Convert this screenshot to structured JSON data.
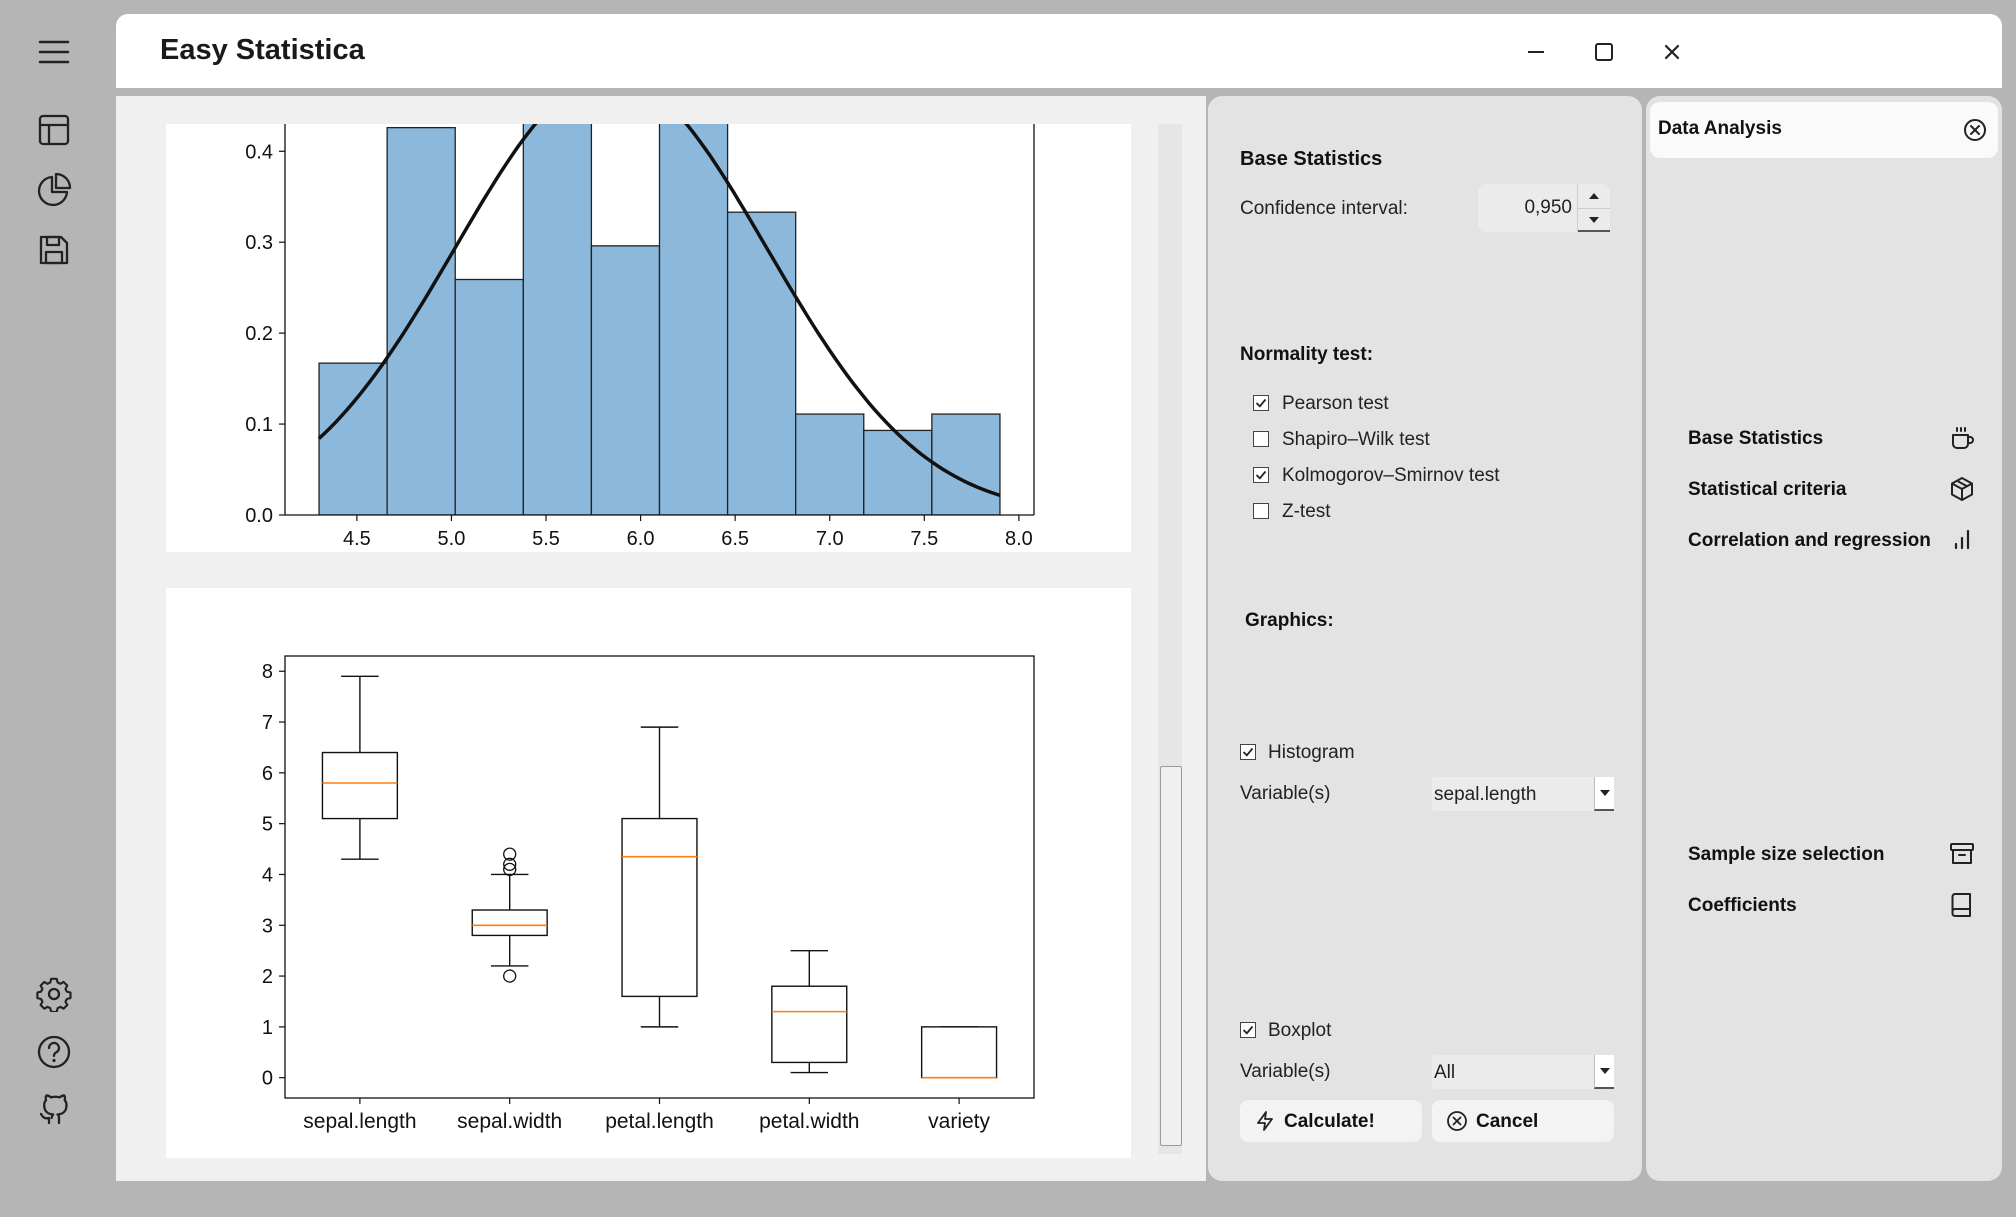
{
  "app": {
    "title": "Easy Statistica"
  },
  "settings": {
    "heading": "Base Statistics",
    "confidence_label": "Confidence interval:",
    "confidence_value": "0,950",
    "normality_heading": "Normality test:",
    "tests": [
      {
        "label": "Pearson test",
        "checked": true
      },
      {
        "label": "Shapiro–Wilk test",
        "checked": false
      },
      {
        "label": "Kolmogorov–Smirnov test",
        "checked": true
      },
      {
        "label": "Z-test",
        "checked": false
      }
    ],
    "graphics_heading": "Graphics:",
    "histogram": {
      "label": "Histogram",
      "checked": true,
      "variable_label": "Variable(s)",
      "variable_value": "sepal.length"
    },
    "boxplot": {
      "label": "Boxplot",
      "checked": true,
      "variable_label": "Variable(s)",
      "variable_value": "All"
    },
    "calculate_label": "Calculate!",
    "cancel_label": "Cancel"
  },
  "analysis": {
    "title": "Data Analysis",
    "items": [
      {
        "label": "Base Statistics",
        "icon": "coffee-cup-icon"
      },
      {
        "label": "Statistical criteria",
        "icon": "cube-icon"
      },
      {
        "label": "Correlation and regression",
        "icon": "bar-chart-icon"
      },
      {
        "label": "Sample size selection",
        "icon": "archive-box-icon"
      },
      {
        "label": "Coefficients",
        "icon": "book-icon"
      }
    ]
  },
  "rail": {
    "icons": [
      "hamburger-menu-icon",
      "table-icon",
      "pie-chart-icon",
      "save-icon",
      "gear-icon",
      "help-icon",
      "github-icon"
    ]
  },
  "colors": {
    "bar_fill": "#8cb9db",
    "median": "#ff7f0e",
    "curve": "#111111"
  },
  "chart_data": [
    {
      "type": "bar",
      "subtype": "histogram-with-density-curve",
      "bins": [
        {
          "from": 4.3,
          "to": 4.66,
          "density": 0.167
        },
        {
          "from": 4.66,
          "to": 5.02,
          "density": 0.426
        },
        {
          "from": 5.02,
          "to": 5.38,
          "density": 0.259
        },
        {
          "from": 5.38,
          "to": 5.74,
          "density": 0.444
        },
        {
          "from": 5.74,
          "to": 6.1,
          "density": 0.296
        },
        {
          "from": 6.1,
          "to": 6.46,
          "density": 0.444
        },
        {
          "from": 6.46,
          "to": 6.82,
          "density": 0.333
        },
        {
          "from": 6.82,
          "to": 7.18,
          "density": 0.111
        },
        {
          "from": 7.18,
          "to": 7.54,
          "density": 0.093
        },
        {
          "from": 7.54,
          "to": 7.9,
          "density": 0.111
        }
      ],
      "curve": {
        "type": "normal",
        "mean": 5.843,
        "std": 0.825,
        "x_range": [
          4.3,
          7.9
        ]
      },
      "xticks": [
        "4.5",
        "5.0",
        "5.5",
        "6.0",
        "6.5",
        "7.0",
        "7.5",
        "8.0"
      ],
      "yticks": [
        "0.0",
        "0.1",
        "0.2",
        "0.3",
        "0.4"
      ],
      "xlim": [
        4.12,
        8.08
      ],
      "ylim": [
        0,
        0.43
      ]
    },
    {
      "type": "boxplot",
      "categories": [
        "sepal.length",
        "sepal.width",
        "petal.length",
        "petal.width",
        "variety"
      ],
      "boxes": [
        {
          "whisker_low": 4.3,
          "q1": 5.1,
          "median": 5.8,
          "q3": 6.4,
          "whisker_high": 7.9,
          "outliers": []
        },
        {
          "whisker_low": 2.2,
          "q1": 2.8,
          "median": 3.0,
          "q3": 3.3,
          "whisker_high": 4.0,
          "outliers": [
            4.4,
            4.2,
            4.1,
            2.0
          ]
        },
        {
          "whisker_low": 1.0,
          "q1": 1.6,
          "median": 4.35,
          "q3": 5.1,
          "whisker_high": 6.9,
          "outliers": []
        },
        {
          "whisker_low": 0.1,
          "q1": 0.3,
          "median": 1.3,
          "q3": 1.8,
          "whisker_high": 2.5,
          "outliers": []
        },
        {
          "whisker_low": 0.0,
          "q1": 0.0,
          "median": 0.0,
          "q3": 1.0,
          "whisker_high": 1.0,
          "outliers": []
        }
      ],
      "yticks": [
        "0",
        "1",
        "2",
        "3",
        "4",
        "5",
        "6",
        "7",
        "8"
      ],
      "ylim": [
        -0.4,
        8.3
      ]
    }
  ]
}
